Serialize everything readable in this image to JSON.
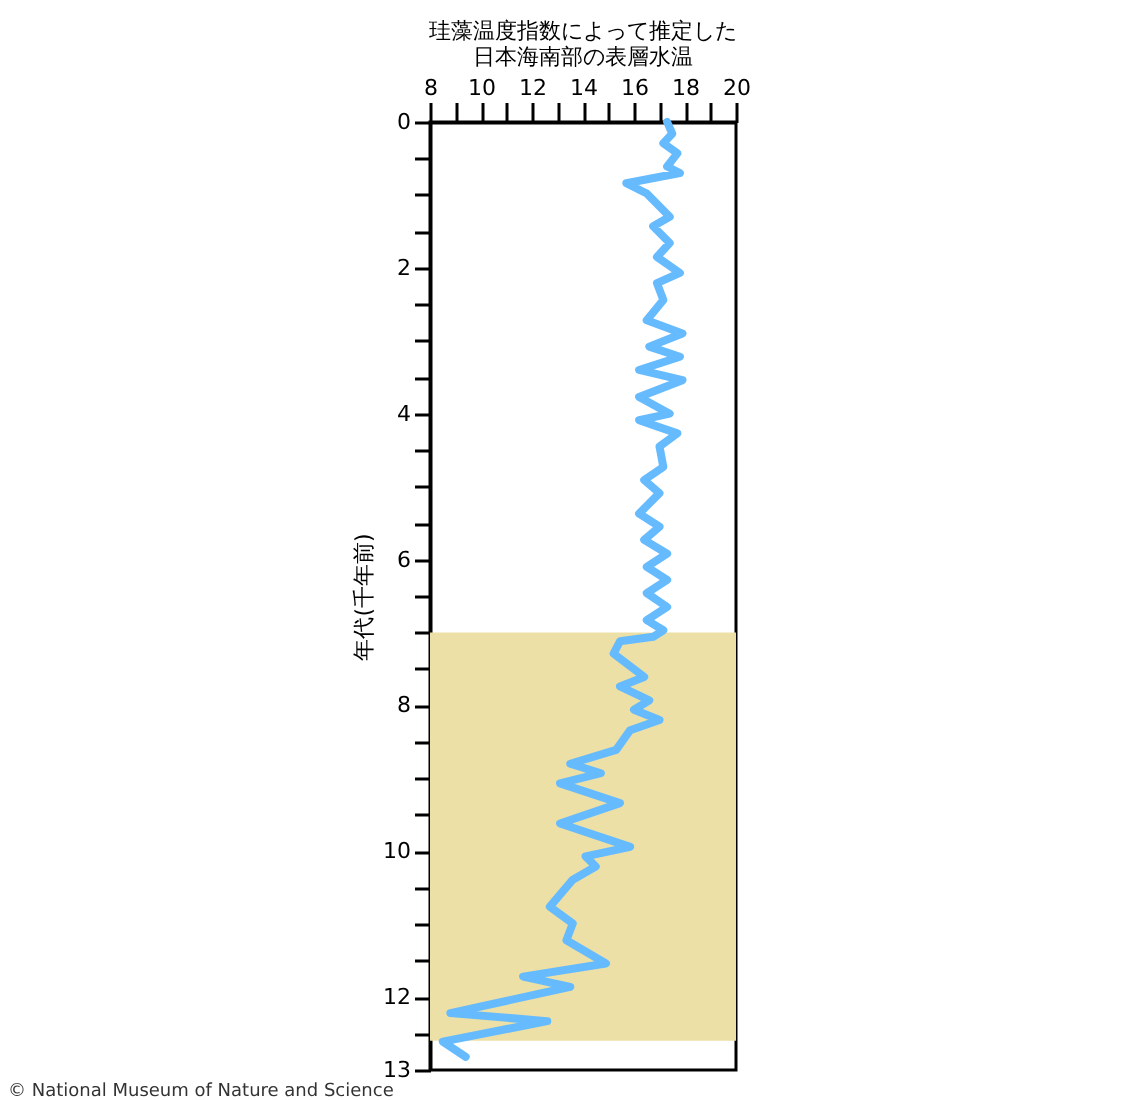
{
  "chart_data": {
    "type": "line",
    "title": "珪藻温度指数によって推定した日本海南部の表層水温",
    "ylabel": "年代(千年前)",
    "annotations": [
      "© National Museum of Nature and Science"
    ],
    "xlim": [
      8,
      20
    ],
    "xticks": [
      8,
      {
        "value": 9,
        "label": null
      },
      10,
      {
        "value": 11,
        "label": null
      },
      12,
      {
        "value": 13,
        "label": null
      },
      14,
      {
        "value": 15,
        "label": null
      },
      16,
      {
        "value": 17,
        "label": null
      },
      18,
      {
        "value": 19,
        "label": null
      },
      20
    ],
    "ylim": [
      13,
      0
    ],
    "yticks": [
      0,
      {
        "value": 0.5,
        "label": null
      },
      {
        "value": 1,
        "label": null
      },
      {
        "value": 1.5,
        "label": null
      },
      2,
      {
        "value": 2.5,
        "label": null
      },
      {
        "value": 3,
        "label": null
      },
      {
        "value": 3.5,
        "label": null
      },
      4,
      {
        "value": 4.5,
        "label": null
      },
      {
        "value": 5,
        "label": null
      },
      {
        "value": 5.5,
        "label": null
      },
      6,
      {
        "value": 6.5,
        "label": null
      },
      {
        "value": 7,
        "label": null
      },
      {
        "value": 7.5,
        "label": null
      },
      8,
      {
        "value": 8.5,
        "label": null
      },
      {
        "value": 9,
        "label": null
      },
      {
        "value": 9.5,
        "label": null
      },
      10,
      {
        "value": 10.5,
        "label": null
      },
      {
        "value": 11,
        "label": null
      },
      {
        "value": 11.5,
        "label": null
      },
      12,
      {
        "value": 12.5,
        "label": null
      },
      13
    ],
    "bands": [
      {
        "axis": "y",
        "from": 7,
        "to": 12.6,
        "color": "#ede0a6"
      }
    ],
    "series": [
      {
        "color": "#66bbff",
        "x": [
          17.3,
          17.5,
          17.15,
          17.7,
          17.3,
          17.8,
          15.7,
          16.5,
          17.4,
          16.75,
          17.4,
          16.9,
          17.8,
          16.9,
          17.15,
          16.5,
          17.9,
          16.6,
          17.8,
          16.2,
          17.9,
          16.2,
          17.4,
          16.2,
          17.7,
          17.0,
          17.15,
          16.4,
          17.0,
          16.2,
          17.0,
          16.4,
          17.3,
          16.5,
          17.3,
          16.5,
          17.3,
          16.5,
          17.15,
          16.75,
          15.45,
          15.2,
          16.4,
          15.45,
          16.6,
          16.0,
          17.0,
          15.85,
          15.3,
          13.5,
          14.7,
          13.1,
          15.45,
          13.1,
          15.85,
          14.1,
          14.5,
          13.6,
          12.7,
          13.6,
          13.35,
          14.9,
          11.65,
          13.5,
          8.8,
          12.6,
          8.5,
          9.4
        ],
        "values": [
          0,
          0.16,
          0.29,
          0.43,
          0.61,
          0.7,
          0.84,
          0.98,
          1.3,
          1.43,
          1.66,
          1.85,
          2.07,
          2.21,
          2.44,
          2.72,
          2.9,
          3.08,
          3.22,
          3.4,
          3.54,
          3.77,
          4.0,
          4.09,
          4.27,
          4.45,
          4.73,
          4.91,
          5.09,
          5.37,
          5.55,
          5.73,
          5.92,
          6.1,
          6.28,
          6.46,
          6.65,
          6.83,
          6.97,
          7.06,
          7.12,
          7.29,
          7.61,
          7.74,
          7.93,
          8.06,
          8.2,
          8.34,
          8.61,
          8.8,
          8.93,
          9.07,
          9.34,
          9.62,
          9.94,
          10.07,
          10.21,
          10.39,
          10.76,
          10.99,
          11.22,
          11.54,
          11.72,
          11.86,
          12.22,
          12.33,
          12.61,
          12.82
        ]
      }
    ]
  }
}
